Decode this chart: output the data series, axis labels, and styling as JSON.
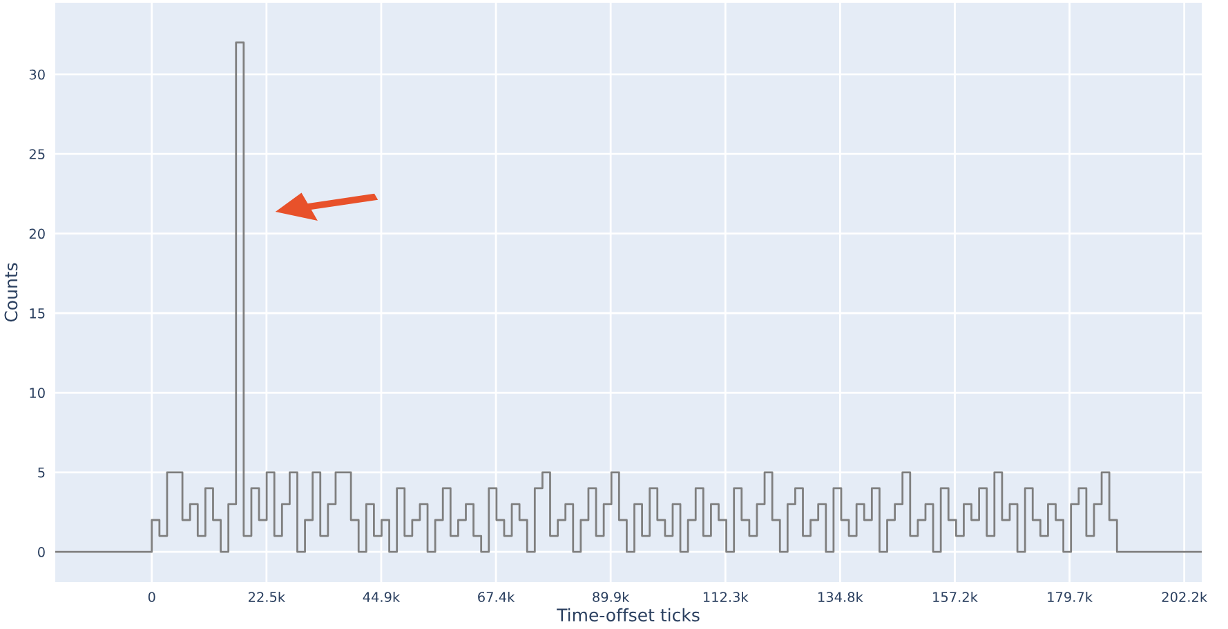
{
  "chart_data": {
    "type": "step",
    "xlabel": "Time-offset ticks",
    "ylabel": "Counts",
    "x": [
      -18900,
      0,
      1500,
      3000,
      4500,
      6000,
      7500,
      9000,
      10500,
      12000,
      13500,
      15000,
      16500,
      18000,
      19500,
      21000,
      22500,
      24000,
      25500,
      27000,
      28500,
      30000,
      31500,
      33000,
      34500,
      36000,
      37500,
      39000,
      40500,
      42000,
      43500,
      45000,
      46500,
      48000,
      49500,
      51000,
      52500,
      54000,
      55500,
      57000,
      58500,
      60000,
      61500,
      63000,
      64500,
      66000,
      67500,
      69000,
      70500,
      72000,
      73500,
      75000,
      76500,
      78000,
      79500,
      81000,
      82500,
      84000,
      85500,
      87000,
      88500,
      90000,
      91500,
      93000,
      94500,
      96000,
      97500,
      99000,
      100500,
      102000,
      103500,
      105000,
      106500,
      108000,
      109500,
      111000,
      112500,
      114000,
      115500,
      117000,
      118500,
      120000,
      121500,
      123000,
      124500,
      126000,
      127500,
      129000,
      130500,
      132000,
      133500,
      135000,
      136500,
      138000,
      139500,
      141000,
      142500,
      144000,
      145500,
      147000,
      148500,
      150000,
      151500,
      153000,
      154500,
      156000,
      157500,
      159000,
      160500,
      162000,
      163500,
      165000,
      166500,
      168000,
      169500,
      171000,
      172500,
      174000,
      175500,
      177000,
      178500,
      180000,
      181500,
      183000,
      184500,
      186000,
      187500,
      189000,
      205600
    ],
    "series": [
      {
        "color": "#7f7f7f",
        "values": [
          0,
          2,
          1,
          5,
          5,
          2,
          3,
          1,
          4,
          2,
          0,
          3,
          32,
          1,
          4,
          2,
          5,
          1,
          3,
          5,
          0,
          2,
          5,
          1,
          3,
          5,
          5,
          2,
          0,
          3,
          1,
          2,
          0,
          4,
          1,
          2,
          3,
          0,
          2,
          4,
          1,
          2,
          3,
          1,
          0,
          4,
          2,
          1,
          3,
          2,
          0,
          4,
          5,
          1,
          2,
          3,
          0,
          2,
          4,
          1,
          3,
          5,
          2,
          0,
          3,
          1,
          4,
          2,
          1,
          3,
          0,
          2,
          4,
          1,
          3,
          2,
          0,
          4,
          2,
          1,
          3,
          5,
          2,
          0,
          3,
          4,
          1,
          2,
          3,
          0,
          4,
          2,
          1,
          3,
          2,
          4,
          0,
          2,
          3,
          5,
          1,
          2,
          3,
          0,
          4,
          2,
          1,
          3,
          2,
          4,
          1,
          5,
          2,
          3,
          0,
          4,
          2,
          1,
          3,
          2,
          0,
          3,
          4,
          1,
          3,
          5,
          2,
          0,
          0
        ]
      }
    ],
    "xlim": [
      -18900,
      205600
    ],
    "xticks": [
      0,
      {
        "value": 22464,
        "label": "22.5k"
      },
      {
        "value": 44928,
        "label": "44.9k"
      },
      {
        "value": 67392,
        "label": "67.4k"
      },
      {
        "value": 89856,
        "label": "89.9k"
      },
      {
        "value": 112320,
        "label": "112.3k"
      },
      {
        "value": 134784,
        "label": "134.8k"
      },
      {
        "value": 157248,
        "label": "157.2k"
      },
      {
        "value": 179712,
        "label": "179.7k"
      },
      {
        "value": 202176,
        "label": "202.2k"
      }
    ],
    "ylim": [
      -1.9,
      34.5
    ],
    "yticks": [
      0,
      5,
      10,
      15,
      20,
      25,
      30
    ],
    "grid": true,
    "line_style": "solid",
    "legend": false
  }
}
